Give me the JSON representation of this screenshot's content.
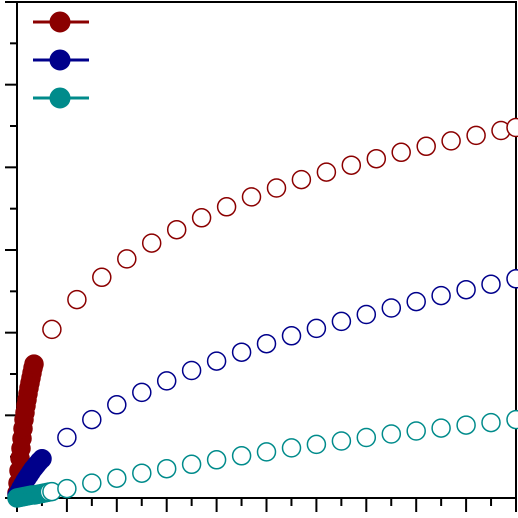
{
  "chart_data": {
    "type": "scatter",
    "title": "",
    "xlabel": "",
    "ylabel": "",
    "xlim": [
      0,
      1
    ],
    "ylim": [
      0,
      1
    ],
    "grid": false,
    "legend": "top-left",
    "series": [
      {
        "color": "#8B0000",
        "points": [
          [
            0.0,
            0.01
          ],
          [
            0.002,
            0.03
          ],
          [
            0.004,
            0.055
          ],
          [
            0.006,
            0.08
          ],
          [
            0.008,
            0.1
          ],
          [
            0.01,
            0.12
          ],
          [
            0.012,
            0.14
          ],
          [
            0.014,
            0.158
          ],
          [
            0.016,
            0.172
          ],
          [
            0.018,
            0.186
          ],
          [
            0.02,
            0.198
          ],
          [
            0.022,
            0.21
          ],
          [
            0.024,
            0.222
          ],
          [
            0.026,
            0.232
          ],
          [
            0.028,
            0.242
          ],
          [
            0.03,
            0.252
          ],
          [
            0.032,
            0.262
          ],
          [
            0.034,
            0.27
          ],
          [
            0.07,
            0.34
          ],
          [
            0.12,
            0.4
          ],
          [
            0.17,
            0.445
          ],
          [
            0.22,
            0.482
          ],
          [
            0.27,
            0.514
          ],
          [
            0.32,
            0.541
          ],
          [
            0.37,
            0.565
          ],
          [
            0.42,
            0.587
          ],
          [
            0.47,
            0.607
          ],
          [
            0.52,
            0.625
          ],
          [
            0.57,
            0.642
          ],
          [
            0.62,
            0.657
          ],
          [
            0.67,
            0.671
          ],
          [
            0.72,
            0.684
          ],
          [
            0.77,
            0.697
          ],
          [
            0.82,
            0.709
          ],
          [
            0.87,
            0.72
          ],
          [
            0.92,
            0.731
          ],
          [
            0.97,
            0.741
          ],
          [
            1.0,
            0.747
          ]
        ]
      },
      {
        "color": "#00008B",
        "points": [
          [
            0.0,
            0.005
          ],
          [
            0.004,
            0.012
          ],
          [
            0.008,
            0.02
          ],
          [
            0.012,
            0.027
          ],
          [
            0.016,
            0.034
          ],
          [
            0.02,
            0.04
          ],
          [
            0.024,
            0.046
          ],
          [
            0.028,
            0.052
          ],
          [
            0.032,
            0.058
          ],
          [
            0.036,
            0.063
          ],
          [
            0.04,
            0.068
          ],
          [
            0.045,
            0.074
          ],
          [
            0.05,
            0.079
          ],
          [
            0.1,
            0.122
          ],
          [
            0.15,
            0.158
          ],
          [
            0.2,
            0.188
          ],
          [
            0.25,
            0.213
          ],
          [
            0.3,
            0.236
          ],
          [
            0.35,
            0.257
          ],
          [
            0.4,
            0.276
          ],
          [
            0.45,
            0.294
          ],
          [
            0.5,
            0.311
          ],
          [
            0.55,
            0.327
          ],
          [
            0.6,
            0.342
          ],
          [
            0.65,
            0.356
          ],
          [
            0.7,
            0.37
          ],
          [
            0.75,
            0.383
          ],
          [
            0.8,
            0.396
          ],
          [
            0.85,
            0.408
          ],
          [
            0.9,
            0.42
          ],
          [
            0.95,
            0.431
          ],
          [
            1.0,
            0.442
          ]
        ]
      },
      {
        "color": "#008B8B",
        "points": [
          [
            0.0,
            0.0
          ],
          [
            0.005,
            0.001
          ],
          [
            0.01,
            0.002
          ],
          [
            0.015,
            0.003
          ],
          [
            0.02,
            0.004
          ],
          [
            0.025,
            0.005
          ],
          [
            0.03,
            0.006
          ],
          [
            0.035,
            0.006
          ],
          [
            0.04,
            0.007
          ],
          [
            0.045,
            0.008
          ],
          [
            0.05,
            0.009
          ],
          [
            0.055,
            0.01
          ],
          [
            0.06,
            0.011
          ],
          [
            0.065,
            0.012
          ],
          [
            0.07,
            0.013
          ],
          [
            0.1,
            0.019
          ],
          [
            0.15,
            0.03
          ],
          [
            0.2,
            0.04
          ],
          [
            0.25,
            0.05
          ],
          [
            0.3,
            0.059
          ],
          [
            0.35,
            0.068
          ],
          [
            0.4,
            0.077
          ],
          [
            0.45,
            0.085
          ],
          [
            0.5,
            0.093
          ],
          [
            0.55,
            0.101
          ],
          [
            0.6,
            0.108
          ],
          [
            0.65,
            0.115
          ],
          [
            0.7,
            0.122
          ],
          [
            0.75,
            0.129
          ],
          [
            0.8,
            0.135
          ],
          [
            0.85,
            0.141
          ],
          [
            0.9,
            0.147
          ],
          [
            0.95,
            0.152
          ],
          [
            1.0,
            0.158
          ]
        ]
      }
    ]
  }
}
